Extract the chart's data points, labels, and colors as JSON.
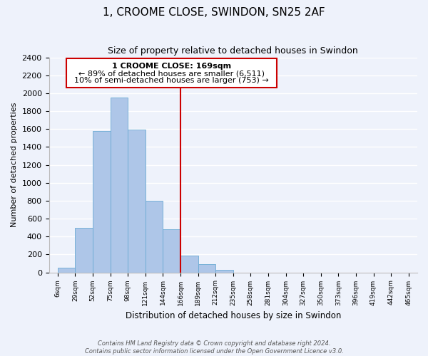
{
  "title": "1, CROOME CLOSE, SWINDON, SN25 2AF",
  "subtitle": "Size of property relative to detached houses in Swindon",
  "xlabel": "Distribution of detached houses by size in Swindon",
  "ylabel": "Number of detached properties",
  "bar_labels": [
    "6sqm",
    "29sqm",
    "52sqm",
    "75sqm",
    "98sqm",
    "121sqm",
    "144sqm",
    "166sqm",
    "189sqm",
    "212sqm",
    "235sqm",
    "258sqm",
    "281sqm",
    "304sqm",
    "327sqm",
    "350sqm",
    "373sqm",
    "396sqm",
    "419sqm",
    "442sqm",
    "465sqm"
  ],
  "bar_values": [
    55,
    500,
    1575,
    1950,
    1590,
    800,
    480,
    185,
    90,
    30,
    0,
    0,
    0,
    0,
    0,
    0,
    0,
    0,
    0,
    0
  ],
  "bar_color": "#aec6e8",
  "bar_edge_color": "#6aaad4",
  "vline_color": "#cc0000",
  "annotation_title": "1 CROOME CLOSE: 169sqm",
  "annotation_line1": "← 89% of detached houses are smaller (6,511)",
  "annotation_line2": "10% of semi-detached houses are larger (753) →",
  "annotation_box_color": "#ffffff",
  "annotation_box_edge": "#cc0000",
  "ylim": [
    0,
    2400
  ],
  "yticks": [
    0,
    200,
    400,
    600,
    800,
    1000,
    1200,
    1400,
    1600,
    1800,
    2000,
    2200,
    2400
  ],
  "footnote1": "Contains HM Land Registry data © Crown copyright and database right 2024.",
  "footnote2": "Contains public sector information licensed under the Open Government Licence v3.0.",
  "bg_color": "#eef2fb",
  "title_fontsize": 11,
  "subtitle_fontsize": 9
}
